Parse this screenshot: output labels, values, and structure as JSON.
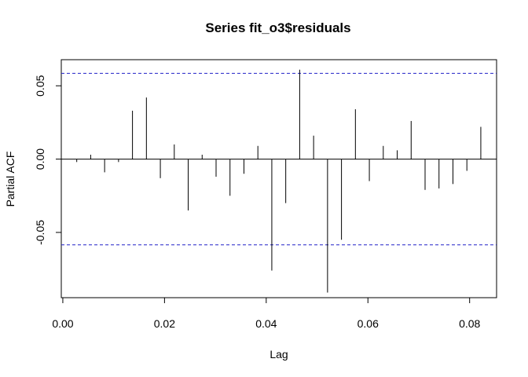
{
  "chart_data": {
    "type": "bar",
    "title": "Series  fit_o3$residuals",
    "xlabel": "Lag",
    "ylabel": "Partial ACF",
    "xlim": [
      -0.0003,
      0.0853
    ],
    "ylim": [
      -0.0945,
      0.0678
    ],
    "x_ticks": [
      0.0,
      0.02,
      0.04,
      0.06,
      0.08
    ],
    "x_tick_labels": [
      "0.00",
      "0.02",
      "0.04",
      "0.06",
      "0.08"
    ],
    "y_ticks": [
      -0.05,
      0.0,
      0.05
    ],
    "y_tick_labels": [
      "-0.05",
      "0.00",
      "0.05"
    ],
    "confidence_bound": 0.0585,
    "series": [
      {
        "lags": [
          0.00274,
          0.00548,
          0.00822,
          0.01096,
          0.0137,
          0.01644,
          0.01918,
          0.02192,
          0.02466,
          0.0274,
          0.03014,
          0.03288,
          0.03562,
          0.03836,
          0.0411,
          0.04384,
          0.04658,
          0.04932,
          0.05206,
          0.0548,
          0.05754,
          0.06028,
          0.06302,
          0.06576,
          0.0685,
          0.07124,
          0.07398,
          0.07672,
          0.07946,
          0.0822
        ],
        "values": [
          -0.002,
          0.003,
          -0.009,
          -0.002,
          0.033,
          0.042,
          -0.013,
          0.01,
          -0.035,
          0.003,
          -0.012,
          -0.025,
          -0.01,
          0.009,
          -0.076,
          -0.03,
          0.061,
          0.016,
          -0.091,
          -0.055,
          0.034,
          -0.015,
          0.009,
          0.006,
          0.026,
          -0.021,
          -0.02,
          -0.017,
          -0.008,
          0.022
        ]
      }
    ],
    "grid": false,
    "bound_color": "#2020c8",
    "bar_color": "#000000"
  }
}
